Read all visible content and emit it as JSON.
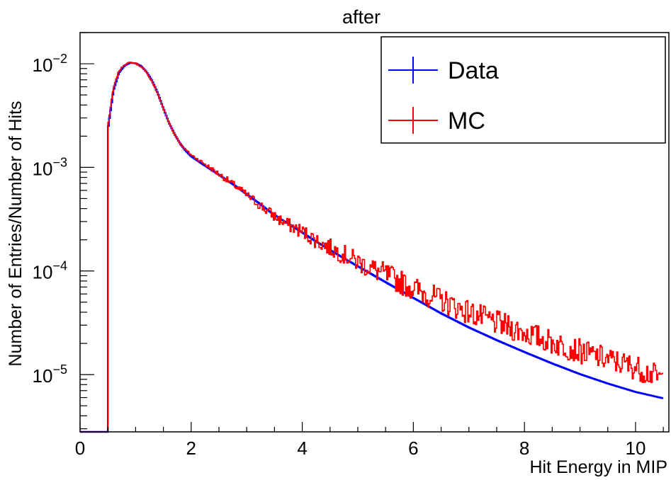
{
  "chart_data": {
    "type": "line",
    "title": "after",
    "xlabel": "Hit Energy in MIP",
    "ylabel": "Number of Entries/Number of Hits",
    "xlim": [
      0,
      10.6
    ],
    "ylim": [
      2.8e-06,
      0.02
    ],
    "yscale": "log",
    "grid": false,
    "legend_position": "top-right",
    "x_ticks": [
      0,
      2,
      4,
      6,
      8,
      10
    ],
    "x_tick_labels": [
      "0",
      "2",
      "4",
      "6",
      "8",
      "10"
    ],
    "y_ticks": [
      1e-05,
      0.0001,
      0.001,
      0.01
    ],
    "y_tick_labels": [
      {
        "base": "10",
        "exp": "−5"
      },
      {
        "base": "10",
        "exp": "−4"
      },
      {
        "base": "10",
        "exp": "−3"
      },
      {
        "base": "10",
        "exp": "−2"
      }
    ],
    "series": [
      {
        "name": "Data",
        "color": "#0000ff",
        "x": [
          0.5,
          0.6,
          0.7,
          0.8,
          0.9,
          1.0,
          1.1,
          1.2,
          1.3,
          1.4,
          1.5,
          1.6,
          1.7,
          1.8,
          1.9,
          2.0,
          2.2,
          2.4,
          2.6,
          2.8,
          3.0,
          3.2,
          3.4,
          3.6,
          3.8,
          4.0,
          4.2,
          4.4,
          4.6,
          4.8,
          5.0,
          5.5,
          6.0,
          6.5,
          7.0,
          7.5,
          8.0,
          8.5,
          9.0,
          9.5,
          10.0,
          10.5
        ],
        "y": [
          0.0023,
          0.0055,
          0.0082,
          0.0096,
          0.0102,
          0.0101,
          0.0095,
          0.0083,
          0.0068,
          0.0052,
          0.0037,
          0.0027,
          0.0021,
          0.0017,
          0.00145,
          0.00128,
          0.00108,
          0.00092,
          0.00078,
          0.00066,
          0.00055,
          0.00046,
          0.00038,
          0.00032,
          0.000275,
          0.000235,
          0.0002,
          0.000172,
          0.000148,
          0.000128,
          0.000111,
          7.8e-05,
          5.5e-05,
          3.9e-05,
          2.85e-05,
          2.15e-05,
          1.65e-05,
          1.28e-05,
          1.01e-05,
          8.2e-06,
          6.8e-06,
          5.9e-06
        ]
      },
      {
        "name": "MC",
        "color": "#ff0000",
        "x": [
          0.5,
          0.6,
          0.7,
          0.8,
          0.9,
          1.0,
          1.1,
          1.2,
          1.3,
          1.4,
          1.5,
          1.6,
          1.7,
          1.8,
          1.9,
          2.0,
          2.2,
          2.4,
          2.6,
          2.8,
          3.0,
          3.2,
          3.4,
          3.6,
          3.8,
          4.0,
          4.2,
          4.4,
          4.6,
          4.8,
          5.0,
          5.5,
          6.0,
          6.5,
          7.0,
          7.5,
          8.0,
          8.5,
          9.0,
          9.5,
          10.0,
          10.5
        ],
        "y": [
          0.0025,
          0.0058,
          0.0085,
          0.0098,
          0.0103,
          0.0101,
          0.0094,
          0.0082,
          0.0067,
          0.0051,
          0.0037,
          0.0027,
          0.0021,
          0.0017,
          0.00148,
          0.00132,
          0.00112,
          0.00094,
          0.00079,
          0.00066,
          0.00054,
          0.00045,
          0.00037,
          0.00031,
          0.00027,
          0.00024,
          0.000205,
          0.000178,
          0.000158,
          0.00014,
          0.000122,
          9.2e-05,
          6.8e-05,
          5.2e-05,
          4e-05,
          3.15e-05,
          2.55e-05,
          2.05e-05,
          1.68e-05,
          1.4e-05,
          1.18e-05,
          9e-06
        ],
        "noise": 0.12
      }
    ]
  }
}
